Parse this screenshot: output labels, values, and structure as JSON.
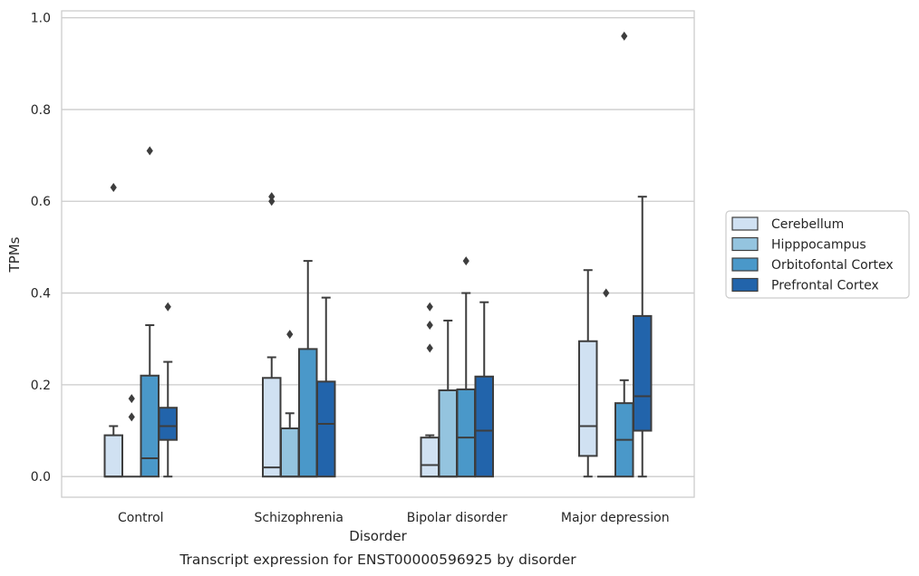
{
  "chart_data": {
    "type": "box",
    "title": "",
    "xlabel": "Disorder",
    "ylabel": "TPMs",
    "caption": "Transcript expression for ENST00000596925 by disorder",
    "ylim": [
      -0.045,
      1.015
    ],
    "yticks": [
      "0.0",
      "0.2",
      "0.4",
      "0.6",
      "0.8",
      "1.0"
    ],
    "grid": "horizontal",
    "legend_position": "right",
    "categories": [
      "Control",
      "Schizophrenia",
      "Bipolar disorder",
      "Major depression"
    ],
    "series": [
      {
        "name": "Cerebellum",
        "color": "#d0e1f2",
        "boxes": [
          {
            "min": 0.0,
            "q1": 0.0,
            "median": 0.0,
            "q3": 0.09,
            "max": 0.11,
            "outliers": [
              0.63
            ]
          },
          {
            "min": 0.0,
            "q1": 0.0,
            "median": 0.02,
            "q3": 0.215,
            "max": 0.26,
            "outliers": [
              0.6,
              0.61
            ]
          },
          {
            "min": 0.0,
            "q1": 0.0,
            "median": 0.025,
            "q3": 0.085,
            "max": 0.09,
            "outliers": [
              0.28,
              0.33,
              0.37
            ]
          },
          {
            "min": 0.0,
            "q1": 0.045,
            "median": 0.11,
            "q3": 0.295,
            "max": 0.45,
            "outliers": []
          }
        ]
      },
      {
        "name": "Hipppocampus",
        "color": "#94c4df",
        "boxes": [
          {
            "min": 0.0,
            "q1": 0.0,
            "median": 0.0,
            "q3": 0.0,
            "max": 0.0,
            "outliers": [
              0.13,
              0.17
            ]
          },
          {
            "min": 0.0,
            "q1": 0.0,
            "median": 0.0,
            "q3": 0.105,
            "max": 0.138,
            "outliers": [
              0.31
            ]
          },
          {
            "min": 0.0,
            "q1": 0.0,
            "median": 0.0,
            "q3": 0.188,
            "max": 0.34,
            "outliers": []
          },
          {
            "min": 0.0,
            "q1": 0.0,
            "median": 0.0,
            "q3": 0.0,
            "max": 0.0,
            "outliers": [
              0.4
            ]
          }
        ]
      },
      {
        "name": "Orbitofontal Cortex",
        "color": "#4a98c9",
        "boxes": [
          {
            "min": 0.0,
            "q1": 0.0,
            "median": 0.04,
            "q3": 0.22,
            "max": 0.33,
            "outliers": [
              0.71
            ]
          },
          {
            "min": 0.0,
            "q1": 0.0,
            "median": 0.0,
            "q3": 0.278,
            "max": 0.47,
            "outliers": []
          },
          {
            "min": 0.0,
            "q1": 0.0,
            "median": 0.085,
            "q3": 0.19,
            "max": 0.4,
            "outliers": [
              0.47
            ]
          },
          {
            "min": 0.0,
            "q1": 0.0,
            "median": 0.08,
            "q3": 0.16,
            "max": 0.21,
            "outliers": [
              0.96
            ]
          }
        ]
      },
      {
        "name": "Prefrontal Cortex",
        "color": "#2264ab",
        "boxes": [
          {
            "min": 0.0,
            "q1": 0.08,
            "median": 0.11,
            "q3": 0.15,
            "max": 0.25,
            "outliers": [
              0.37
            ]
          },
          {
            "min": 0.0,
            "q1": 0.0,
            "median": 0.115,
            "q3": 0.207,
            "max": 0.39,
            "outliers": []
          },
          {
            "min": 0.0,
            "q1": 0.0,
            "median": 0.1,
            "q3": 0.218,
            "max": 0.38,
            "outliers": []
          },
          {
            "min": 0.0,
            "q1": 0.1,
            "median": 0.175,
            "q3": 0.35,
            "max": 0.61,
            "outliers": []
          }
        ]
      }
    ]
  }
}
